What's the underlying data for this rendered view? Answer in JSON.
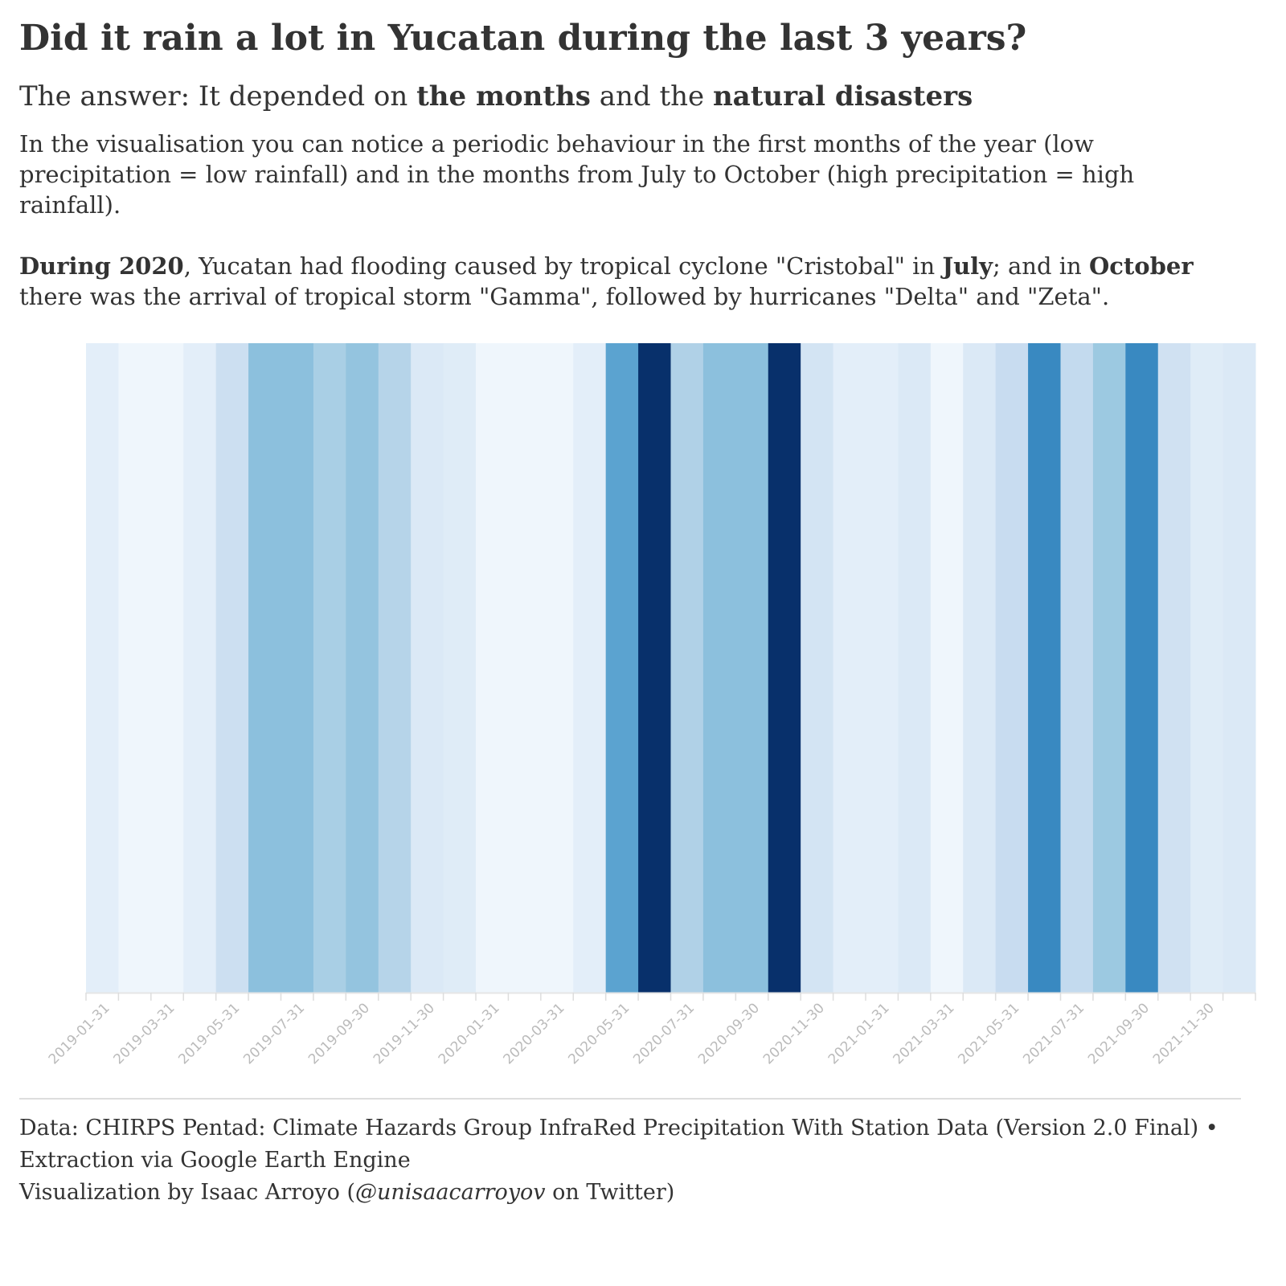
{
  "header": {
    "title": "Did it rain a lot in Yucatan during the last 3 years?",
    "subtitle_prefix": "The answer: It depended on ",
    "subtitle_bold_1": "the months",
    "subtitle_mid": " and the ",
    "subtitle_bold_2": "natural disasters"
  },
  "description": {
    "paragraph_1": "In the visualisation you can notice a periodic behaviour in the first months of the year (low precipitation = low rainfall) and in the months from July to October (high precipitation = high rainfall).",
    "p2_bold_1": "During 2020",
    "p2_text_1": ", Yucatan had flooding caused by tropical cyclone \"Cristobal\" in ",
    "p2_bold_2": "July",
    "p2_text_2": "; and in ",
    "p2_bold_3": "October",
    "p2_text_3": " there was the arrival of tropical storm \"Gamma\", followed by hurricanes \"Delta\" and \"Zeta\"."
  },
  "chart_data": {
    "type": "heatmap",
    "colormap": "Blues",
    "x": [
      "2019-01-31",
      "2019-02-28",
      "2019-03-31",
      "2019-04-30",
      "2019-05-31",
      "2019-06-30",
      "2019-07-31",
      "2019-08-31",
      "2019-09-30",
      "2019-10-31",
      "2019-11-30",
      "2019-12-31",
      "2020-01-31",
      "2020-02-29",
      "2020-03-31",
      "2020-04-30",
      "2020-05-31",
      "2020-06-30",
      "2020-07-31",
      "2020-08-31",
      "2020-09-30",
      "2020-10-31",
      "2020-11-30",
      "2020-12-31",
      "2021-01-31",
      "2021-02-28",
      "2021-03-31",
      "2021-04-30",
      "2021-05-31",
      "2021-06-30",
      "2021-07-31",
      "2021-08-31",
      "2021-09-30",
      "2021-10-31",
      "2021-11-30",
      "2021-12-31"
    ],
    "tick_labels": [
      "2019-01-31",
      "2019-03-31",
      "2019-05-31",
      "2019-07-31",
      "2019-09-30",
      "2019-11-30",
      "2020-01-31",
      "2020-03-31",
      "2020-05-31",
      "2020-07-31",
      "2020-09-30",
      "2020-11-30",
      "2021-01-31",
      "2021-03-31",
      "2021-05-31",
      "2021-07-31",
      "2021-09-30",
      "2021-11-30"
    ],
    "values": [
      0.1,
      0.04,
      0.04,
      0.1,
      0.22,
      0.42,
      0.42,
      0.34,
      0.4,
      0.3,
      0.14,
      0.12,
      0.04,
      0.04,
      0.04,
      0.1,
      0.55,
      1.0,
      0.32,
      0.42,
      0.42,
      1.0,
      0.18,
      0.1,
      0.1,
      0.14,
      0.04,
      0.14,
      0.24,
      0.66,
      0.26,
      0.38,
      0.66,
      0.2,
      0.12,
      0.14
    ],
    "value_scale": "relative intensity (0 = lowest, 1 = highest)",
    "grid": false,
    "legend": "none"
  },
  "footer": {
    "source_line": "Data: CHIRPS Pentad: Climate Hazards Group InfraRed Precipitation With Station Data (Version 2.0 Final) • Extraction via Google Earth Engine",
    "credit_prefix": "Visualization by Isaac Arroyo (",
    "credit_handle": "@unisaacarroyov",
    "credit_suffix": " on Twitter)"
  }
}
